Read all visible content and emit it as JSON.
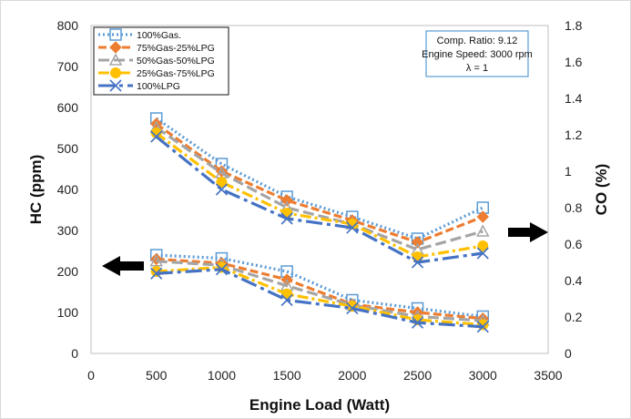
{
  "chart_data": {
    "type": "line",
    "x": [
      500,
      1000,
      1500,
      2000,
      2500,
      3000
    ],
    "xlabel": "Engine Load (Watt)",
    "xlim": [
      0,
      3500
    ],
    "xticks": [
      "0",
      "500",
      "1000",
      "1500",
      "2000",
      "2500",
      "3000",
      "3500"
    ],
    "ylabel_left": "HC (ppm)",
    "ylim_left": [
      0,
      800
    ],
    "yticks_left": [
      "0",
      "100",
      "200",
      "300",
      "400",
      "500",
      "600",
      "700",
      "800"
    ],
    "ylabel_right": "CO (%)",
    "ylim_right": [
      0,
      1.8
    ],
    "yticks_right": [
      "0",
      "0.2",
      "0.4",
      "0.6",
      "0.8",
      "1",
      "1.2",
      "1.4",
      "1.6",
      "1.8"
    ],
    "grid": false,
    "legend_position": "top-left",
    "annotation_lines": [
      "Comp. Ratio: 9.12",
      "Engine Speed: 3000 rpm",
      "λ = 1"
    ],
    "series": [
      {
        "name": "100%Gas.",
        "color": "#5B9BD5",
        "marker": "square",
        "hc": [
          240,
          232,
          200,
          130,
          110,
          90
        ],
        "co": [
          1.29,
          1.04,
          0.86,
          0.75,
          0.63,
          0.8
        ]
      },
      {
        "name": "75%Gas-25%LPG",
        "color": "#ED7D31",
        "marker": "diamond",
        "hc": [
          230,
          220,
          180,
          120,
          100,
          85
        ],
        "co": [
          1.26,
          1.0,
          0.84,
          0.73,
          0.61,
          0.75
        ]
      },
      {
        "name": "50%Gas-50%LPG",
        "color": "#A5A5A5",
        "marker": "triangle",
        "hc": [
          225,
          215,
          165,
          118,
          90,
          80
        ],
        "co": [
          1.24,
          0.99,
          0.8,
          0.71,
          0.57,
          0.67
        ]
      },
      {
        "name": "25%Gas-75%LPG",
        "color": "#FFC000",
        "marker": "circle",
        "hc": [
          200,
          210,
          145,
          115,
          82,
          70
        ],
        "co": [
          1.21,
          0.94,
          0.77,
          0.71,
          0.53,
          0.59
        ]
      },
      {
        "name": "100%LPG",
        "color": "#4472C4",
        "marker": "x",
        "hc": [
          195,
          205,
          130,
          110,
          75,
          65
        ],
        "co": [
          1.19,
          0.9,
          0.74,
          0.69,
          0.5,
          0.55
        ]
      }
    ]
  }
}
